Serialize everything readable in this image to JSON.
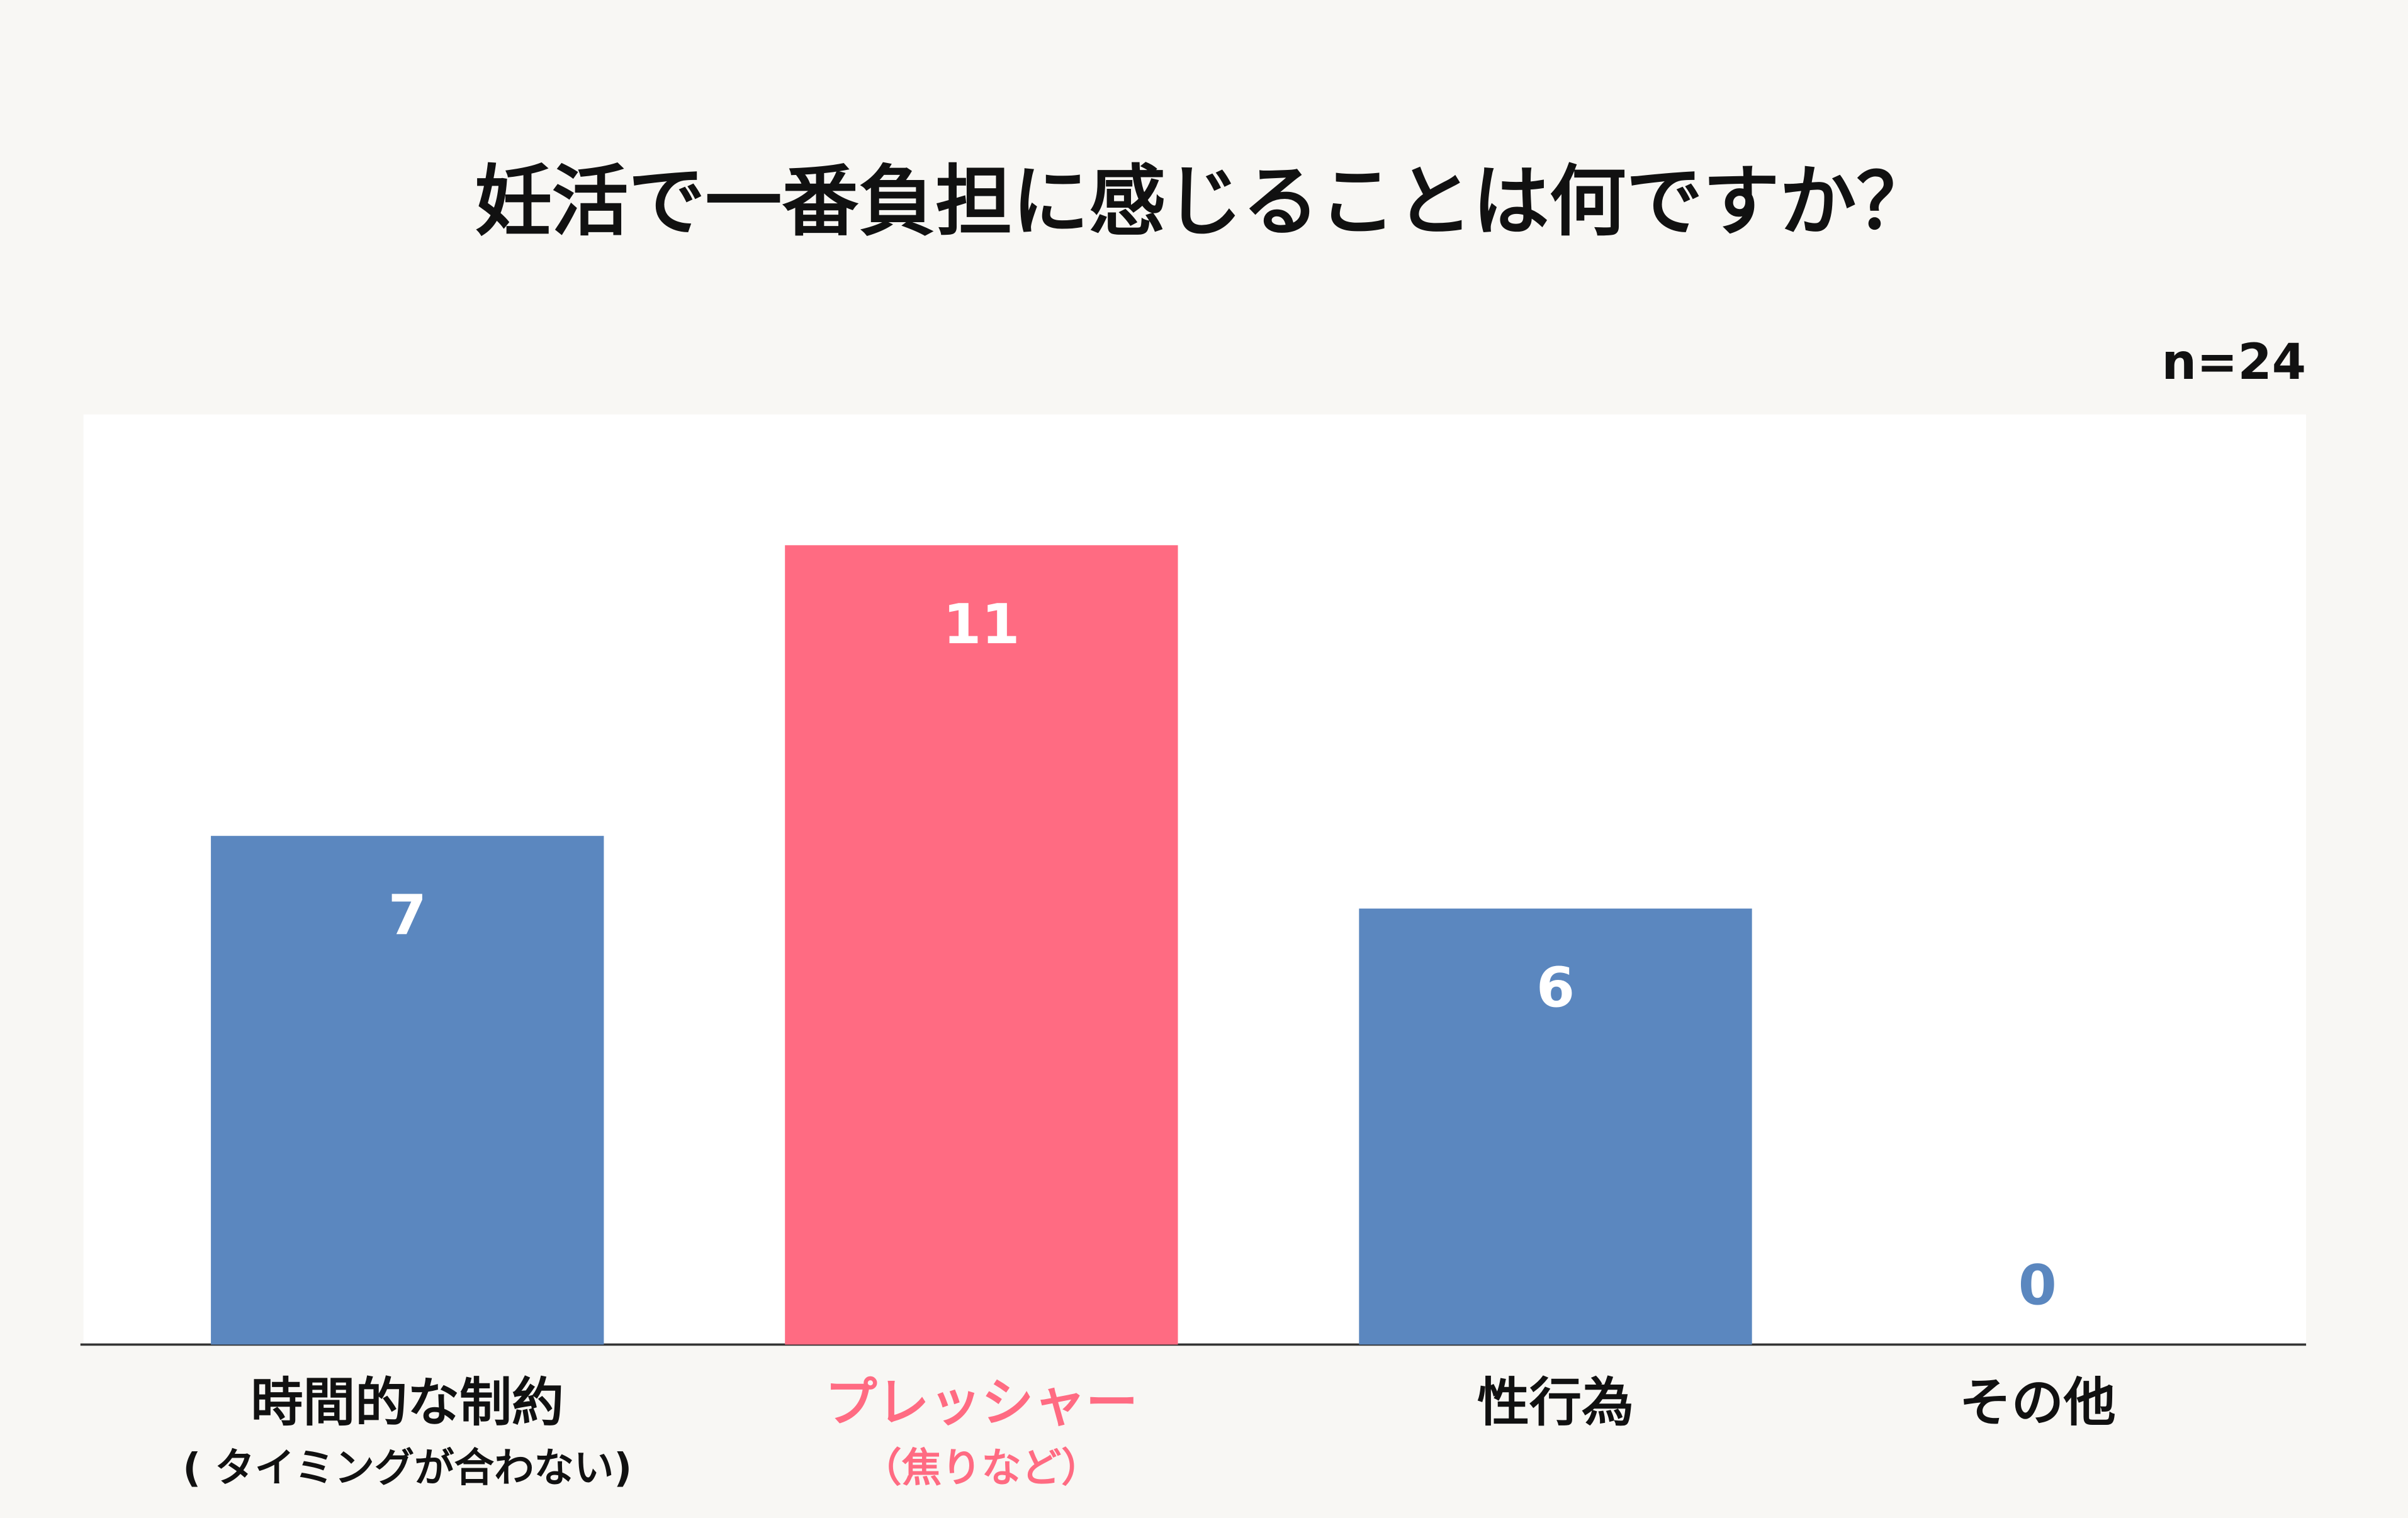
{
  "chart_data": {
    "type": "bar",
    "title": "妊活で一番負担に感じることは何ですか？",
    "annotation": "n=24",
    "categories": [
      "時間的な制約",
      "プレッシャー",
      "性行為",
      "その他"
    ],
    "sublabels": [
      "( タイミングが合わない)",
      "（焦りなど）",
      null,
      null
    ],
    "values": [
      7,
      11,
      6,
      0
    ],
    "colors": [
      "#5b87bf",
      "#ff6b82",
      "#5b87bf",
      "#5b87bf"
    ],
    "label_colors": [
      "#111111",
      "#ff6b82",
      "#111111",
      "#111111"
    ],
    "ylim": [
      0,
      12.8
    ]
  }
}
